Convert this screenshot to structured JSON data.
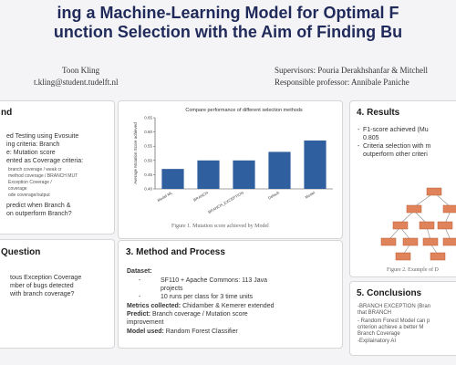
{
  "header": {
    "title_line1": "ing a Machine-Learning Model for Optimal F",
    "title_line2": "unction Selection with the Aim of Finding Bu",
    "author_name": "Toon Kling",
    "author_email": "t.kling@student.tudelft.nl",
    "supervisors": "Supervisors: Pouria Derakhshanfar & Mitchell",
    "responsible_professor": "Responsible professor: Annibale Paniche"
  },
  "background": {
    "title": "nd",
    "lines": [
      "ed Testing using Evosuite",
      "ing criteria: Branch",
      "e: Mutation score",
      "ented as Coverage criteria:"
    ],
    "small_lines": [
      "branch coverage / weak cr",
      "method coverage / BRANCH MUT",
      "Exception Coverage /",
      "coverage",
      "ode coverage/output"
    ],
    "lines2": [
      "predict when Branch &",
      "on outperform Branch?"
    ]
  },
  "chart": {
    "caption": "Figure 1. Mutation score achieved by Model"
  },
  "chart_data": {
    "type": "bar",
    "title": "Compare performance of different selection methods",
    "xlabel": "",
    "ylabel": "Average Mutation Score achieved",
    "ylim": [
      0.4,
      0.65
    ],
    "yticks": [
      "0.40",
      "0.45",
      "0.50",
      "0.55",
      "0.60",
      "0.65"
    ],
    "categories": [
      "Model ML",
      "BRANCH",
      "BRANCH_EXCEPTION",
      "Default",
      "Model"
    ],
    "values": [
      0.47,
      0.5,
      0.5,
      0.53,
      0.57
    ],
    "bar_color": "#2f5f9e"
  },
  "question": {
    "title": "Question",
    "lines": [
      "tous Exception Coverage",
      "mber of bugs detected",
      "with branch coverage?"
    ]
  },
  "method": {
    "title": "3. Method and Process",
    "dataset_label": "Dataset:",
    "dataset_items": [
      "SF110 + Apache Commons: 113 Java",
      "projects",
      "10 runs per class for 3 time units"
    ],
    "metrics_label": "Metrics collected:",
    "metrics_value": "Chidamber & Kemerer extended",
    "predict_label": "Predict:",
    "predict_value": "Branch coverage / Mutation score",
    "predict_value2": "improvement",
    "model_label": "Model used:",
    "model_value": "Random Forest Classifier"
  },
  "results": {
    "title": "4. Results",
    "lines": [
      "F1-score achieved (Mu",
      "0.805",
      "Criteria selection with m",
      "outperform other criteri"
    ],
    "caption": "Figure 2. Example of D"
  },
  "conclusions": {
    "title": "5. Conclusions",
    "lines": [
      "-BRANCH EXCEPTION (Bran",
      "that BRANCH",
      "- Random Forest Model can p",
      "criterion achieve a better M",
      "Branch Coverage",
      "-Explainatory AI"
    ]
  },
  "colors": {
    "title": "#1f2a5a",
    "bar": "#2f5f9e",
    "tree_node": "#e0835a"
  }
}
